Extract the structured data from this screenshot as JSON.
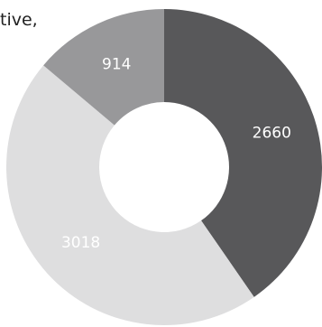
{
  "chart_data": {
    "type": "pie",
    "variant": "donut",
    "title_fragment": "tive,",
    "slices": [
      {
        "label": "2660",
        "value": 2660,
        "color": "#58585a"
      },
      {
        "label": "3018",
        "value": 3018,
        "color": "#dededf"
      },
      {
        "label": "914",
        "value": 914,
        "color": "#98989a"
      }
    ],
    "start_angle_deg": 0,
    "direction": "clockwise",
    "legend": "none",
    "data_labels": "inside slices"
  }
}
